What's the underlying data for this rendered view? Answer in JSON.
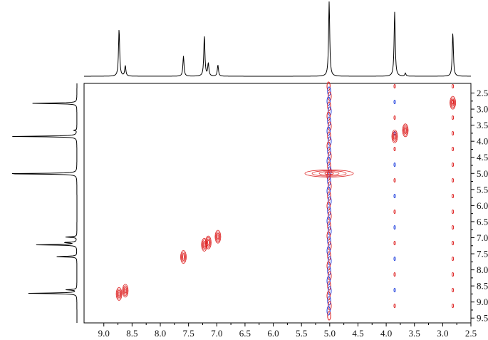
{
  "chart_data": {
    "type": "2d-nmr-contour",
    "title": "",
    "xlabel": "",
    "ylabel": "",
    "x_axis": {
      "reversed": true,
      "lim": [
        9.35,
        2.5
      ],
      "ticks": [
        9.0,
        8.5,
        8.0,
        7.5,
        7.0,
        6.5,
        6.0,
        5.5,
        5.0,
        4.5,
        4.0,
        3.5,
        3.0,
        2.5
      ],
      "tick_labels": [
        "9.0",
        "8.5",
        "8.0",
        "7.5",
        "7.0",
        "6.5",
        "6.0",
        "5.5",
        "5.0",
        "4.5",
        "4.0",
        "3.5",
        "3.0",
        "2.5"
      ]
    },
    "y_axis": {
      "position": "right",
      "lim": [
        2.2,
        9.65
      ],
      "ticks": [
        2.5,
        3.0,
        3.5,
        4.0,
        4.5,
        5.0,
        5.5,
        6.0,
        6.5,
        7.0,
        7.5,
        8.0,
        8.5,
        9.0,
        9.5
      ],
      "tick_labels": [
        "2.5",
        "3.0",
        "3.5",
        "4.0",
        "4.5",
        "5.0",
        "5.5",
        "6.0",
        "6.5",
        "7.0",
        "7.5",
        "8.0",
        "8.5",
        "9.0",
        "9.5"
      ]
    },
    "projection_1d_peaks": [
      {
        "ppm": 8.73,
        "height": 0.63
      },
      {
        "ppm": 8.62,
        "height": 0.14
      },
      {
        "ppm": 7.59,
        "height": 0.27
      },
      {
        "ppm": 7.22,
        "height": 0.54
      },
      {
        "ppm": 7.15,
        "height": 0.17
      },
      {
        "ppm": 6.98,
        "height": 0.15
      },
      {
        "ppm": 5.01,
        "height": 1.0
      },
      {
        "ppm": 3.85,
        "height": 0.86
      },
      {
        "ppm": 3.66,
        "height": 0.04
      },
      {
        "ppm": 2.82,
        "height": 0.58
      }
    ],
    "cross_peaks": [
      {
        "x": 8.73,
        "y": 8.75,
        "color": "#dd1f1f"
      },
      {
        "x": 8.62,
        "y": 8.65,
        "color": "#dd1f1f"
      },
      {
        "x": 7.59,
        "y": 7.6,
        "color": "#dd1f1f"
      },
      {
        "x": 7.22,
        "y": 7.22,
        "color": "#dd1f1f"
      },
      {
        "x": 7.15,
        "y": 7.15,
        "color": "#dd1f1f"
      },
      {
        "x": 6.98,
        "y": 6.97,
        "color": "#dd1f1f"
      },
      {
        "x": 5.01,
        "y": 5.0,
        "color": "#dd1f1f"
      },
      {
        "x": 3.85,
        "y": 3.85,
        "color": "#dd1f1f"
      },
      {
        "x": 3.66,
        "y": 3.66,
        "color": "#dd1f1f"
      },
      {
        "x": 2.82,
        "y": 2.8,
        "color": "#dd1f1f"
      }
    ],
    "vertical_streaks": [
      {
        "x": 5.01,
        "colors": [
          "#dd1f1f",
          "#1f3fdd"
        ]
      },
      {
        "x": 3.85,
        "colors": [
          "#dd1f1f",
          "#1f3fdd"
        ]
      },
      {
        "x": 2.82,
        "colors": [
          "#dd1f1f"
        ]
      }
    ],
    "colors": {
      "positive": "#dd1f1f",
      "negative": "#1f3fdd",
      "trace": "#000000"
    },
    "grid": false,
    "legend": "none"
  }
}
